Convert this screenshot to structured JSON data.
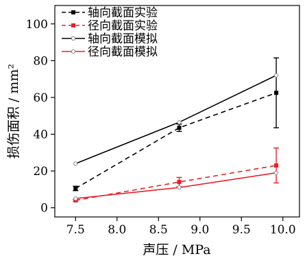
{
  "chart_data": {
    "type": "line",
    "xlabel": "声压 / MPa",
    "ylabel": "损伤面积 / mm²",
    "xlim": [
      7.25,
      10.2
    ],
    "ylim": [
      -5,
      110
    ],
    "x_ticks": [
      "7.5",
      "8.0",
      "8.5",
      "9.0",
      "9.5",
      "10.0"
    ],
    "x_tick_values": [
      7.5,
      8.0,
      8.5,
      9.0,
      9.5,
      10.0
    ],
    "y_ticks": [
      "0",
      "20",
      "40",
      "60",
      "80",
      "100"
    ],
    "y_tick_values": [
      0,
      20,
      40,
      60,
      80,
      100
    ],
    "legend_position": "top-left",
    "series": [
      {
        "name": "轴向截面实验",
        "color": "#000000",
        "line_style": "dashed",
        "marker": "square",
        "x": [
          7.5,
          8.75,
          9.92
        ],
        "y": [
          10.5,
          43.5,
          62.5
        ],
        "error": [
          1.2,
          2.0,
          19.0
        ]
      },
      {
        "name": "径向截面实验",
        "color": "#e8202a",
        "line_style": "dashed",
        "marker": "square",
        "x": [
          7.5,
          8.75,
          9.92
        ],
        "y": [
          4.0,
          14.0,
          23.0
        ],
        "error": [
          0.5,
          2.5,
          9.5
        ]
      },
      {
        "name": "轴向截面模拟",
        "color": "#000000",
        "line_style": "solid",
        "marker": "circle",
        "x": [
          7.5,
          8.75,
          9.92
        ],
        "y": [
          24.0,
          46.5,
          72.0
        ]
      },
      {
        "name": "径向截面模拟",
        "color": "#e8202a",
        "line_style": "solid",
        "marker": "circle",
        "x": [
          7.5,
          8.75,
          9.92
        ],
        "y": [
          5.0,
          11.0,
          19.0
        ]
      }
    ]
  }
}
